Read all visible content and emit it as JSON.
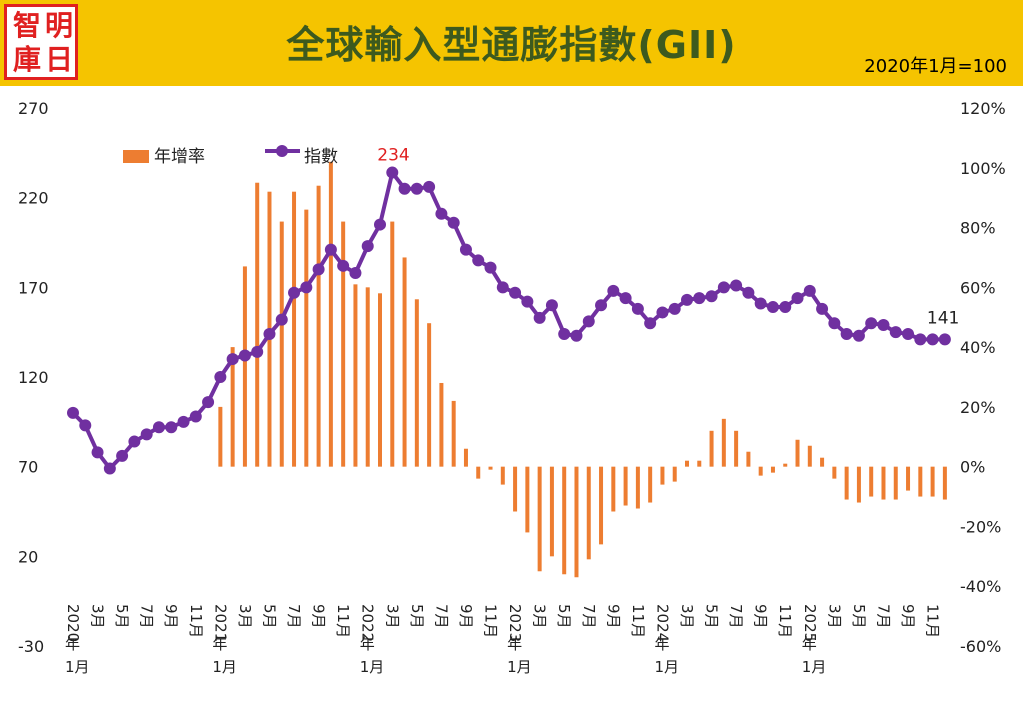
{
  "header": {
    "logo": [
      "智",
      "明",
      "庫",
      "日"
    ],
    "title": "全球輸入型通膨指數(GII)",
    "base_note": "2020年1月=100"
  },
  "chart_data": {
    "type": "bar+line",
    "title": "全球輸入型通膨指數(GII)",
    "y_left": {
      "ticks": [
        "270",
        "220",
        "170",
        "120",
        "70",
        "20",
        "-30"
      ],
      "lim": [
        -30,
        270
      ]
    },
    "y_right": {
      "ticks": [
        "120%",
        "100%",
        "80%",
        "60%",
        "40%",
        "20%",
        "0%",
        "-20%",
        "-40%",
        "-60%"
      ],
      "lim": [
        -60,
        120
      ]
    },
    "x_labels": [
      "2020年1月",
      "3月",
      "5月",
      "7月",
      "9月",
      "11月",
      "2021年1月",
      "3月",
      "5月",
      "7月",
      "9月",
      "11月",
      "2022年1月",
      "3月",
      "5月",
      "7月",
      "9月",
      "11月",
      "2023年1月",
      "3月",
      "5月",
      "7月",
      "9月",
      "11月",
      "2024年1月",
      "3月",
      "5月",
      "7月",
      "9月",
      "11月",
      "2025年1月",
      "3月",
      "5月",
      "7月",
      "9月",
      "11月"
    ],
    "series": [
      {
        "name": "年增率",
        "type": "bar",
        "unit": "%",
        "color": "#ed7d31",
        "values": [
          null,
          null,
          null,
          null,
          null,
          null,
          null,
          null,
          null,
          null,
          null,
          null,
          20,
          40,
          67,
          95,
          92,
          82,
          92,
          86,
          94,
          102,
          82,
          61,
          60,
          58,
          82,
          70,
          56,
          48,
          28,
          22,
          6,
          -4,
          -1,
          -6,
          -15,
          -22,
          -35,
          -30,
          -36,
          -37,
          -31,
          -26,
          -15,
          -13,
          -14,
          -12,
          -6,
          -5,
          2,
          2,
          12,
          16,
          12,
          5,
          -3,
          -2,
          1,
          9,
          7,
          3,
          -4,
          -11,
          -12,
          -10,
          -11,
          -11,
          -8,
          -10,
          -10,
          -11
        ]
      },
      {
        "name": "指數",
        "type": "line",
        "color": "#7030a0",
        "values": [
          100,
          93,
          78,
          69,
          76,
          84,
          88,
          92,
          92,
          95,
          98,
          106,
          120,
          130,
          132,
          134,
          144,
          152,
          167,
          170,
          180,
          191,
          182,
          178,
          193,
          205,
          234,
          225,
          225,
          226,
          211,
          206,
          191,
          185,
          181,
          170,
          167,
          162,
          153,
          160,
          144,
          143,
          151,
          160,
          168,
          164,
          158,
          150,
          156,
          158,
          163,
          164,
          165,
          170,
          171,
          167,
          161,
          159,
          159,
          164,
          168,
          158,
          150,
          144,
          143,
          150,
          149,
          145,
          144,
          141,
          141,
          141
        ]
      }
    ],
    "annotations": {
      "peak": "234",
      "last": "141"
    },
    "legend": "top-left"
  }
}
